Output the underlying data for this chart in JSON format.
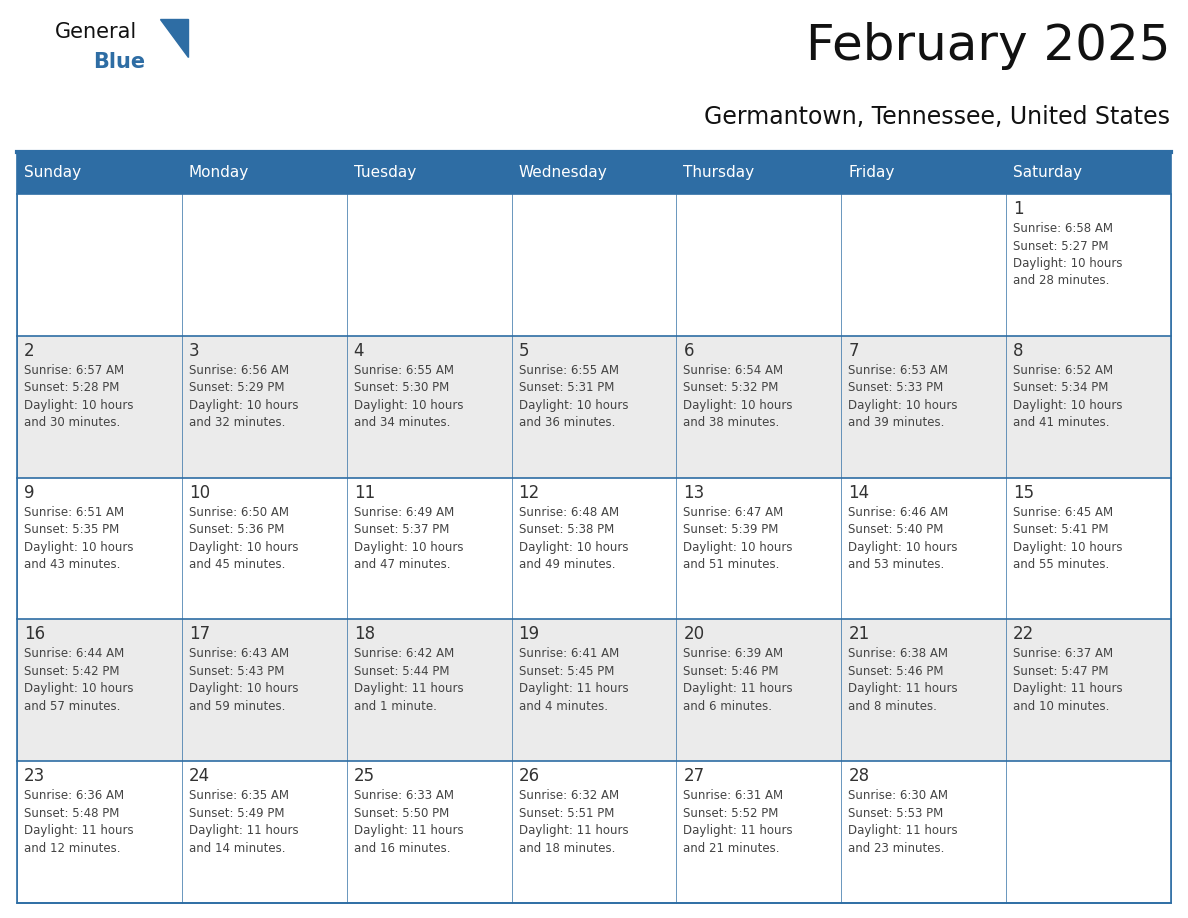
{
  "title": "February 2025",
  "subtitle": "Germantown, Tennessee, United States",
  "header_color": "#2E6DA4",
  "header_text_color": "#FFFFFF",
  "cell_bg_white": "#FFFFFF",
  "cell_bg_gray": "#EBEBEB",
  "cell_border_color": "#2E6DA4",
  "day_number_color": "#333333",
  "text_color": "#444444",
  "background_color": "#FFFFFF",
  "days_of_week": [
    "Sunday",
    "Monday",
    "Tuesday",
    "Wednesday",
    "Thursday",
    "Friday",
    "Saturday"
  ],
  "calendar_data": [
    [
      {
        "day": "",
        "info": ""
      },
      {
        "day": "",
        "info": ""
      },
      {
        "day": "",
        "info": ""
      },
      {
        "day": "",
        "info": ""
      },
      {
        "day": "",
        "info": ""
      },
      {
        "day": "",
        "info": ""
      },
      {
        "day": "1",
        "info": "Sunrise: 6:58 AM\nSunset: 5:27 PM\nDaylight: 10 hours\nand 28 minutes."
      }
    ],
    [
      {
        "day": "2",
        "info": "Sunrise: 6:57 AM\nSunset: 5:28 PM\nDaylight: 10 hours\nand 30 minutes."
      },
      {
        "day": "3",
        "info": "Sunrise: 6:56 AM\nSunset: 5:29 PM\nDaylight: 10 hours\nand 32 minutes."
      },
      {
        "day": "4",
        "info": "Sunrise: 6:55 AM\nSunset: 5:30 PM\nDaylight: 10 hours\nand 34 minutes."
      },
      {
        "day": "5",
        "info": "Sunrise: 6:55 AM\nSunset: 5:31 PM\nDaylight: 10 hours\nand 36 minutes."
      },
      {
        "day": "6",
        "info": "Sunrise: 6:54 AM\nSunset: 5:32 PM\nDaylight: 10 hours\nand 38 minutes."
      },
      {
        "day": "7",
        "info": "Sunrise: 6:53 AM\nSunset: 5:33 PM\nDaylight: 10 hours\nand 39 minutes."
      },
      {
        "day": "8",
        "info": "Sunrise: 6:52 AM\nSunset: 5:34 PM\nDaylight: 10 hours\nand 41 minutes."
      }
    ],
    [
      {
        "day": "9",
        "info": "Sunrise: 6:51 AM\nSunset: 5:35 PM\nDaylight: 10 hours\nand 43 minutes."
      },
      {
        "day": "10",
        "info": "Sunrise: 6:50 AM\nSunset: 5:36 PM\nDaylight: 10 hours\nand 45 minutes."
      },
      {
        "day": "11",
        "info": "Sunrise: 6:49 AM\nSunset: 5:37 PM\nDaylight: 10 hours\nand 47 minutes."
      },
      {
        "day": "12",
        "info": "Sunrise: 6:48 AM\nSunset: 5:38 PM\nDaylight: 10 hours\nand 49 minutes."
      },
      {
        "day": "13",
        "info": "Sunrise: 6:47 AM\nSunset: 5:39 PM\nDaylight: 10 hours\nand 51 minutes."
      },
      {
        "day": "14",
        "info": "Sunrise: 6:46 AM\nSunset: 5:40 PM\nDaylight: 10 hours\nand 53 minutes."
      },
      {
        "day": "15",
        "info": "Sunrise: 6:45 AM\nSunset: 5:41 PM\nDaylight: 10 hours\nand 55 minutes."
      }
    ],
    [
      {
        "day": "16",
        "info": "Sunrise: 6:44 AM\nSunset: 5:42 PM\nDaylight: 10 hours\nand 57 minutes."
      },
      {
        "day": "17",
        "info": "Sunrise: 6:43 AM\nSunset: 5:43 PM\nDaylight: 10 hours\nand 59 minutes."
      },
      {
        "day": "18",
        "info": "Sunrise: 6:42 AM\nSunset: 5:44 PM\nDaylight: 11 hours\nand 1 minute."
      },
      {
        "day": "19",
        "info": "Sunrise: 6:41 AM\nSunset: 5:45 PM\nDaylight: 11 hours\nand 4 minutes."
      },
      {
        "day": "20",
        "info": "Sunrise: 6:39 AM\nSunset: 5:46 PM\nDaylight: 11 hours\nand 6 minutes."
      },
      {
        "day": "21",
        "info": "Sunrise: 6:38 AM\nSunset: 5:46 PM\nDaylight: 11 hours\nand 8 minutes."
      },
      {
        "day": "22",
        "info": "Sunrise: 6:37 AM\nSunset: 5:47 PM\nDaylight: 11 hours\nand 10 minutes."
      }
    ],
    [
      {
        "day": "23",
        "info": "Sunrise: 6:36 AM\nSunset: 5:48 PM\nDaylight: 11 hours\nand 12 minutes."
      },
      {
        "day": "24",
        "info": "Sunrise: 6:35 AM\nSunset: 5:49 PM\nDaylight: 11 hours\nand 14 minutes."
      },
      {
        "day": "25",
        "info": "Sunrise: 6:33 AM\nSunset: 5:50 PM\nDaylight: 11 hours\nand 16 minutes."
      },
      {
        "day": "26",
        "info": "Sunrise: 6:32 AM\nSunset: 5:51 PM\nDaylight: 11 hours\nand 18 minutes."
      },
      {
        "day": "27",
        "info": "Sunrise: 6:31 AM\nSunset: 5:52 PM\nDaylight: 11 hours\nand 21 minutes."
      },
      {
        "day": "28",
        "info": "Sunrise: 6:30 AM\nSunset: 5:53 PM\nDaylight: 11 hours\nand 23 minutes."
      },
      {
        "day": "",
        "info": ""
      }
    ]
  ],
  "row_bg_colors": [
    "#FFFFFF",
    "#EBEBEB",
    "#FFFFFF",
    "#EBEBEB",
    "#FFFFFF"
  ],
  "logo_triangle_color": "#2E6DA4",
  "title_fontsize": 36,
  "subtitle_fontsize": 17,
  "header_fontsize": 11,
  "day_num_fontsize": 12,
  "info_fontsize": 8.5
}
